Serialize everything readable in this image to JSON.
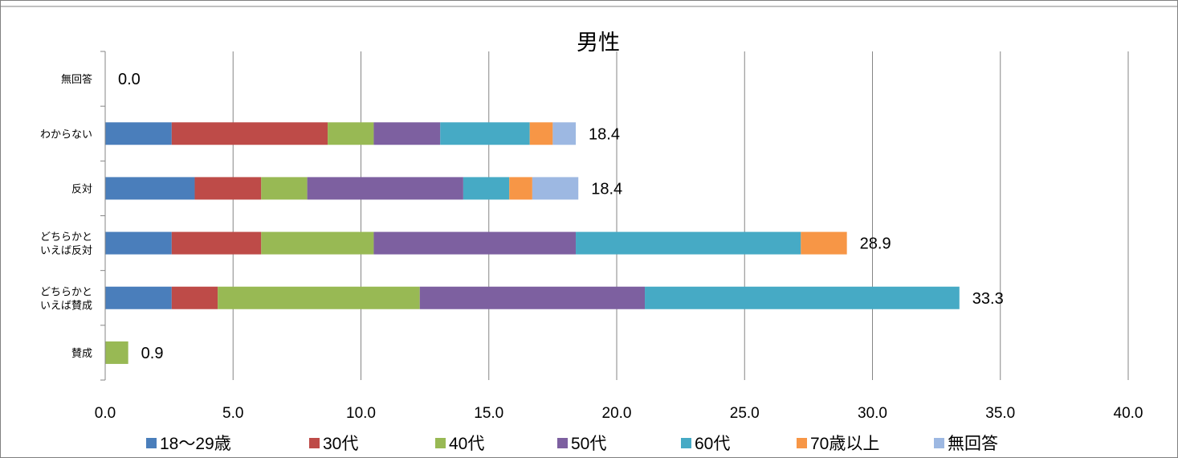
{
  "chart_data": {
    "type": "bar",
    "orientation": "horizontal",
    "stacked": true,
    "title": "男性",
    "categories": [
      "無回答",
      "わからない",
      "反対",
      "どちらかと\nいえば反対",
      "どちらかと\nいえば賛成",
      "賛成"
    ],
    "series": [
      {
        "name": "18〜29歳",
        "color": "#4a7ebb",
        "values": [
          0,
          2.6,
          3.5,
          2.6,
          2.6,
          0
        ]
      },
      {
        "name": "30代",
        "color": "#be4b48",
        "values": [
          0,
          6.1,
          2.6,
          3.5,
          1.8,
          0
        ]
      },
      {
        "name": "40代",
        "color": "#98b954",
        "values": [
          0,
          1.8,
          1.8,
          4.4,
          7.9,
          0.9
        ]
      },
      {
        "name": "50代",
        "color": "#7d60a0",
        "values": [
          0,
          2.6,
          6.1,
          7.9,
          8.8,
          0
        ]
      },
      {
        "name": "60代",
        "color": "#46aac5",
        "values": [
          0,
          3.5,
          1.8,
          8.8,
          12.3,
          0
        ]
      },
      {
        "name": "70歳以上",
        "color": "#f79646",
        "values": [
          0,
          0.9,
          0.9,
          1.8,
          0,
          0
        ]
      },
      {
        "name": "無回答",
        "color": "#9db8e2",
        "values": [
          0,
          0.9,
          1.8,
          0,
          0,
          0
        ]
      }
    ],
    "totals": [
      "0.0",
      "18.4",
      "18.4",
      "28.9",
      "33.3",
      "0.9"
    ],
    "xlim": [
      0,
      40
    ],
    "x_ticks": [
      "0.0",
      "5.0",
      "10.0",
      "15.0",
      "20.0",
      "25.0",
      "30.0",
      "35.0",
      "40.0"
    ],
    "xlabel": "",
    "ylabel": "",
    "grid": "vertical",
    "legend": "bottom"
  }
}
